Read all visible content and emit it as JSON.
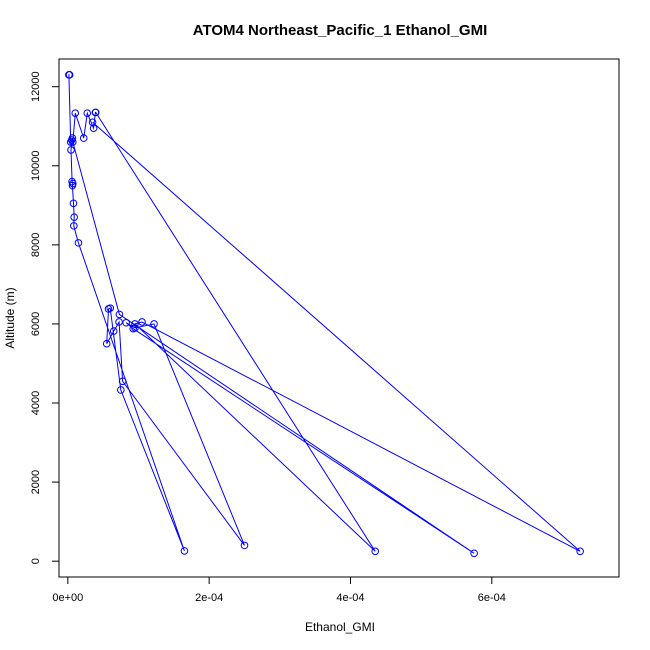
{
  "chart_data": {
    "type": "line",
    "title": "ATOM4 Northeast_Pacific_1 Ethanol_GMI",
    "xlabel": "Ethanol_GMI",
    "ylabel": "Altitude (m)",
    "xlim": [
      -1.25e-05,
      0.00078
    ],
    "ylim": [
      -400,
      12700
    ],
    "xticks": [
      {
        "value": 0.0,
        "label": "0e+00"
      },
      {
        "value": 0.0002,
        "label": "2e-04"
      },
      {
        "value": 0.0004,
        "label": "4e-04"
      },
      {
        "value": 0.0006,
        "label": "6e-04"
      }
    ],
    "yticks": [
      {
        "value": 0,
        "label": "0"
      },
      {
        "value": 2000,
        "label": "2000"
      },
      {
        "value": 4000,
        "label": "4000"
      },
      {
        "value": 6000,
        "label": "6000"
      },
      {
        "value": 8000,
        "label": "8000"
      },
      {
        "value": 10000,
        "label": "10000"
      },
      {
        "value": 12000,
        "label": "12000"
      }
    ],
    "grid": false,
    "series": [
      {
        "color": "#0000ff",
        "marker": "open-circle",
        "x": [
          2.5e-06,
          1.5e-06,
          4e-06,
          5.5e-06,
          6.5e-06,
          4.5e-06,
          6e-06,
          7e-06,
          6.5e-06,
          8e-06,
          9e-06,
          8.5e-06,
          1.5e-05,
          0.000165,
          7.5e-05,
          6e-05,
          5.75e-05,
          5.5e-05,
          6.5e-05,
          7.25e-05,
          7.75e-05,
          0.00025,
          0.000122,
          9.5e-05,
          8.25e-05,
          9.25e-05,
          0.000575,
          7.3e-05,
          7e-06,
          1.05e-05,
          2.25e-05,
          2.75e-05,
          3.65e-05,
          3.9e-05,
          3.95e-05,
          0.000435,
          9.5e-05,
          0.000105,
          0.000725,
          3.5e-05
        ],
        "y": [
          12300,
          12300,
          10600,
          10650,
          10700,
          10400,
          9600,
          9550,
          9500,
          9050,
          8700,
          8480,
          8050,
          260,
          4330,
          6400,
          6380,
          5500,
          5820,
          6050,
          4550,
          400,
          6000,
          5900,
          6030,
          5880,
          200,
          6240,
          10600,
          11330,
          10700,
          11330,
          10950,
          11350,
          11350,
          250,
          6000,
          6050,
          250,
          11100
        ]
      }
    ]
  }
}
